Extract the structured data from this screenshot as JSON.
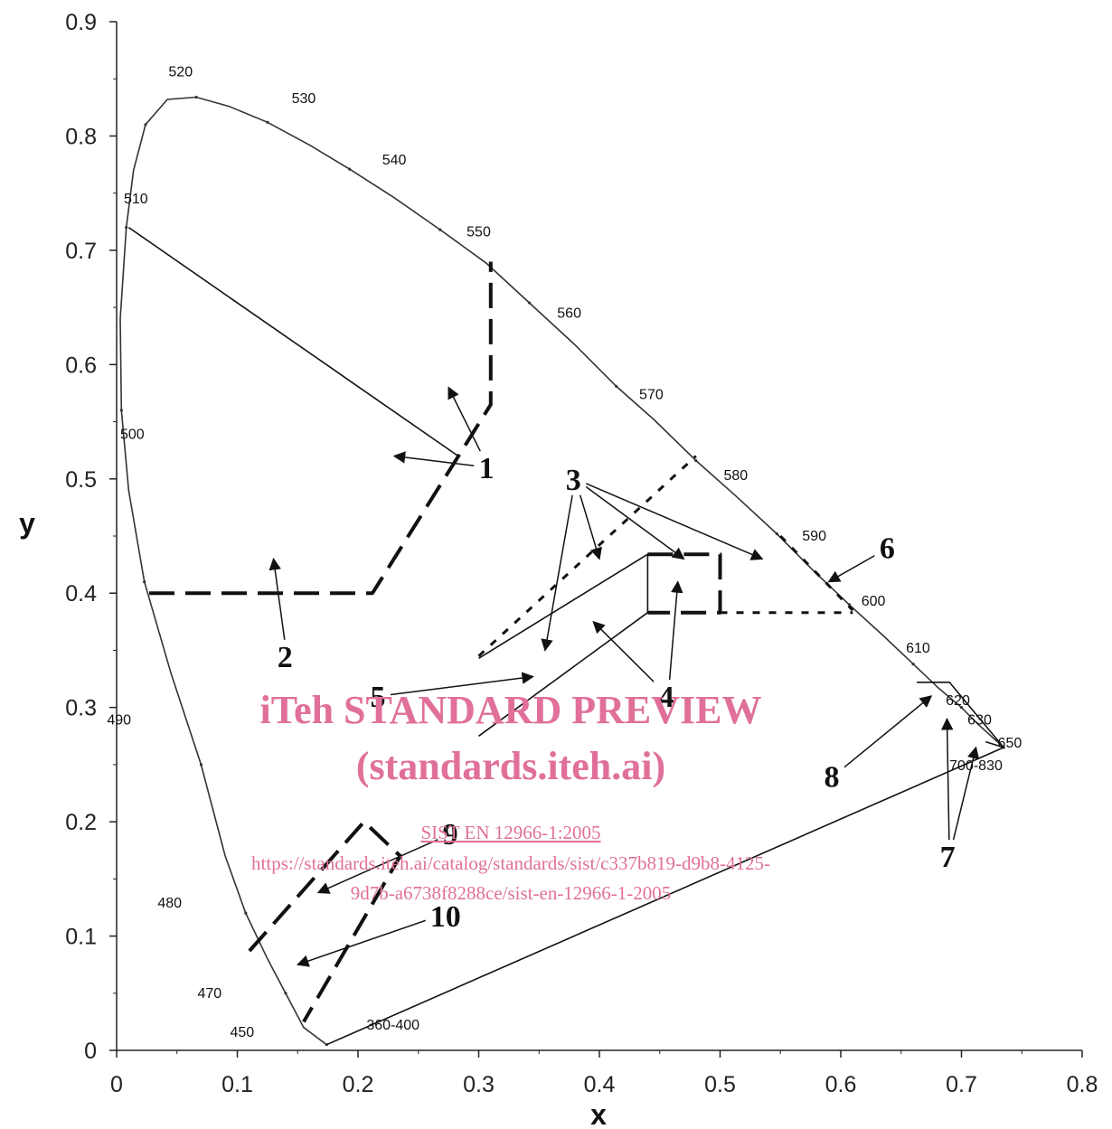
{
  "chart_data": {
    "type": "scatter",
    "title": "",
    "xlabel": "x",
    "ylabel": "y",
    "xlim": [
      0,
      0.8
    ],
    "ylim": [
      0,
      0.9
    ],
    "xticks": [
      0,
      0.1,
      0.2,
      0.3,
      0.4,
      0.5,
      0.6,
      0.7,
      0.8
    ],
    "yticks": [
      0,
      0.1,
      0.2,
      0.3,
      0.4,
      0.5,
      0.6,
      0.7,
      0.8,
      0.9
    ],
    "xtick_labels": [
      "0",
      "0.1",
      "0.2",
      "0.3",
      "0.4",
      "0.5",
      "0.6",
      "0.7",
      "0.8"
    ],
    "ytick_labels": [
      "0",
      "0.1",
      "0.2",
      "0.3",
      "0.4",
      "0.5",
      "0.6",
      "0.7",
      "0.8",
      "0.9"
    ],
    "grid": false,
    "spectral_locus": {
      "x": [
        0.174,
        0.155,
        0.14,
        0.125,
        0.107,
        0.09,
        0.07,
        0.045,
        0.023,
        0.01,
        0.004,
        0.003,
        0.008,
        0.014,
        0.024,
        0.042,
        0.066,
        0.093,
        0.125,
        0.16,
        0.193,
        0.23,
        0.268,
        0.306,
        0.342,
        0.38,
        0.414,
        0.445,
        0.48,
        0.513,
        0.547,
        0.577,
        0.607,
        0.635,
        0.66,
        0.681,
        0.7,
        0.714,
        0.735
      ],
      "y": [
        0.005,
        0.02,
        0.05,
        0.08,
        0.12,
        0.17,
        0.25,
        0.33,
        0.41,
        0.49,
        0.56,
        0.64,
        0.72,
        0.77,
        0.81,
        0.832,
        0.834,
        0.826,
        0.812,
        0.792,
        0.771,
        0.746,
        0.718,
        0.689,
        0.654,
        0.617,
        0.581,
        0.552,
        0.516,
        0.485,
        0.452,
        0.42,
        0.39,
        0.363,
        0.338,
        0.317,
        0.3,
        0.285,
        0.265
      ]
    },
    "wavelength_labels": [
      {
        "text": "360-400",
        "x": 0.229,
        "y": 0.018
      },
      {
        "text": "450",
        "x": 0.104,
        "y": 0.012
      },
      {
        "text": "470",
        "x": 0.077,
        "y": 0.046
      },
      {
        "text": "480",
        "x": 0.044,
        "y": 0.125
      },
      {
        "text": "490",
        "x": 0.002,
        "y": 0.285
      },
      {
        "text": "500",
        "x": 0.013,
        "y": 0.535
      },
      {
        "text": "510",
        "x": 0.016,
        "y": 0.741
      },
      {
        "text": "520",
        "x": 0.053,
        "y": 0.852
      },
      {
        "text": "530",
        "x": 0.155,
        "y": 0.829
      },
      {
        "text": "540",
        "x": 0.23,
        "y": 0.775
      },
      {
        "text": "550",
        "x": 0.3,
        "y": 0.712
      },
      {
        "text": "560",
        "x": 0.375,
        "y": 0.641
      },
      {
        "text": "570",
        "x": 0.443,
        "y": 0.57
      },
      {
        "text": "580",
        "x": 0.513,
        "y": 0.499
      },
      {
        "text": "590",
        "x": 0.578,
        "y": 0.446
      },
      {
        "text": "600",
        "x": 0.627,
        "y": 0.389
      },
      {
        "text": "610",
        "x": 0.664,
        "y": 0.348
      },
      {
        "text": "620",
        "x": 0.697,
        "y": 0.302
      },
      {
        "text": "630",
        "x": 0.715,
        "y": 0.285
      },
      {
        "text": "650",
        "x": 0.74,
        "y": 0.265
      },
      {
        "text": "700-830",
        "x": 0.712,
        "y": 0.245
      }
    ],
    "boundaries": [
      {
        "style": "solid",
        "x": [
          0.01,
          0.283
        ],
        "y": [
          0.72,
          0.52
        ]
      },
      {
        "style": "solid",
        "x": [
          0.174,
          0.735
        ],
        "y": [
          0.005,
          0.265
        ]
      },
      {
        "style": "dashed",
        "x": [
          0.027,
          0.212,
          0.31,
          0.31,
          0.31
        ],
        "y": [
          0.4,
          0.4,
          0.565,
          0.565,
          0.69
        ]
      },
      {
        "style": "dotted",
        "x": [
          0.3,
          0.48
        ],
        "y": [
          0.345,
          0.52
        ]
      },
      {
        "style": "dotted",
        "x": [
          0.55,
          0.61
        ],
        "y": [
          0.45,
          0.385
        ]
      },
      {
        "style": "dotted",
        "x": [
          0.5,
          0.61
        ],
        "y": [
          0.383,
          0.383
        ]
      },
      {
        "style": "solid",
        "x": [
          0.3,
          0.44,
          0.44,
          0.3
        ],
        "y": [
          0.343,
          0.434,
          0.383,
          0.275
        ]
      },
      {
        "style": "dashed",
        "x": [
          0.44,
          0.5,
          0.5,
          0.44
        ],
        "y": [
          0.434,
          0.434,
          0.383,
          0.383
        ]
      },
      {
        "style": "dashed",
        "x": [
          0.11,
          0.205,
          0.235,
          0.155
        ],
        "y": [
          0.087,
          0.2,
          0.17,
          0.025
        ]
      },
      {
        "style": "solid",
        "x": [
          0.663,
          0.69,
          0.735,
          0.72
        ],
        "y": [
          0.322,
          0.322,
          0.265,
          0.27
        ]
      }
    ],
    "region_labels": [
      {
        "text": "1",
        "x": 0.308,
        "y": 0.51,
        "arrows_to": [
          [
            0.275,
            0.58
          ],
          [
            0.23,
            0.52
          ]
        ]
      },
      {
        "text": "2",
        "x": 0.141,
        "y": 0.345,
        "arrows_to": [
          [
            0.13,
            0.43
          ]
        ]
      },
      {
        "text": "3",
        "x": 0.38,
        "y": 0.5,
        "arrows_to": [
          [
            0.4,
            0.43
          ],
          [
            0.355,
            0.35
          ],
          [
            0.47,
            0.43
          ],
          [
            0.535,
            0.43
          ]
        ]
      },
      {
        "text": "4",
        "x": 0.457,
        "y": 0.31,
        "arrows_to": [
          [
            0.395,
            0.375
          ],
          [
            0.465,
            0.41
          ]
        ]
      },
      {
        "text": "5",
        "x": 0.218,
        "y": 0.31,
        "arrows_to": [
          [
            0.345,
            0.327
          ]
        ]
      },
      {
        "text": "6",
        "x": 0.64,
        "y": 0.44,
        "arrows_to": [
          [
            0.59,
            0.41
          ]
        ]
      },
      {
        "text": "7",
        "x": 0.69,
        "y": 0.17,
        "arrows_to": [
          [
            0.688,
            0.29
          ],
          [
            0.712,
            0.265
          ]
        ]
      },
      {
        "text": "8",
        "x": 0.594,
        "y": 0.24,
        "arrows_to": [
          [
            0.675,
            0.31
          ]
        ]
      },
      {
        "text": "9",
        "x": 0.278,
        "y": 0.19,
        "arrows_to": [
          [
            0.167,
            0.138
          ]
        ]
      },
      {
        "text": "10",
        "x": 0.268,
        "y": 0.118,
        "arrows_to": [
          [
            0.15,
            0.075
          ]
        ]
      }
    ],
    "watermark": {
      "line1": "iTeh STANDARD PREVIEW",
      "line2": "(standards.iteh.ai)",
      "line3": "SIST EN 12966-1:2005",
      "line4": "https://standards.iteh.ai/catalog/standards/sist/c337b819-d9b8-4125-",
      "line5": "9d7b-a6738f8288ce/sist-en-12966-1-2005"
    }
  }
}
